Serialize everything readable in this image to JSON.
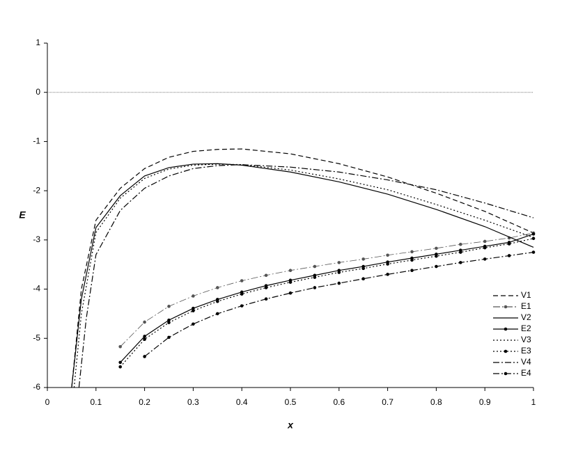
{
  "chart_data": {
    "type": "line",
    "x_label": "x",
    "y_label": "E",
    "xlim": [
      0,
      1
    ],
    "ylim": [
      -6,
      1
    ],
    "xticks": [
      0,
      0.1,
      0.2,
      0.3,
      0.4,
      0.5,
      0.6,
      0.7,
      0.8,
      0.9,
      1
    ],
    "yticks": [
      1,
      0,
      -1,
      -2,
      -3,
      -4,
      -5,
      -6
    ],
    "reference_line": 0,
    "legend": "lower right",
    "series": [
      {
        "name": "V1",
        "color": "#000000",
        "dash": "7,4",
        "marker": false,
        "x": [
          0.05,
          0.07,
          0.1,
          0.15,
          0.2,
          0.25,
          0.3,
          0.35,
          0.4,
          0.5,
          0.6,
          0.7,
          0.8,
          0.9,
          1.0
        ],
        "values": [
          -6,
          -4.0,
          -2.6,
          -1.95,
          -1.55,
          -1.32,
          -1.2,
          -1.16,
          -1.15,
          -1.25,
          -1.45,
          -1.72,
          -2.05,
          -2.42,
          -2.86
        ]
      },
      {
        "name": "E1",
        "color": "#555555",
        "dash": "10,3,2,3",
        "marker": true,
        "x": [
          0.15,
          0.2,
          0.25,
          0.3,
          0.35,
          0.4,
          0.45,
          0.5,
          0.55,
          0.6,
          0.65,
          0.7,
          0.75,
          0.8,
          0.85,
          0.9,
          0.95,
          1.0
        ],
        "values": [
          -5.17,
          -4.67,
          -4.35,
          -4.14,
          -3.97,
          -3.83,
          -3.72,
          -3.62,
          -3.54,
          -3.46,
          -3.39,
          -3.31,
          -3.24,
          -3.17,
          -3.09,
          -3.03,
          -2.96,
          -2.86
        ]
      },
      {
        "name": "V2",
        "color": "#000000",
        "dash": "none",
        "marker": false,
        "x": [
          0.05,
          0.07,
          0.1,
          0.15,
          0.2,
          0.25,
          0.3,
          0.35,
          0.4,
          0.5,
          0.6,
          0.7,
          0.8,
          0.9,
          1.0
        ],
        "values": [
          -6,
          -4.2,
          -2.75,
          -2.1,
          -1.7,
          -1.53,
          -1.46,
          -1.45,
          -1.48,
          -1.62,
          -1.82,
          -2.07,
          -2.38,
          -2.73,
          -3.15
        ]
      },
      {
        "name": "E2",
        "color": "#000000",
        "dash": "none",
        "marker": true,
        "x": [
          0.15,
          0.2,
          0.25,
          0.3,
          0.35,
          0.4,
          0.45,
          0.5,
          0.55,
          0.6,
          0.65,
          0.7,
          0.75,
          0.8,
          0.85,
          0.9,
          0.95,
          1.0
        ],
        "values": [
          -5.49,
          -4.96,
          -4.63,
          -4.39,
          -4.21,
          -4.06,
          -3.93,
          -3.82,
          -3.72,
          -3.62,
          -3.54,
          -3.45,
          -3.37,
          -3.29,
          -3.21,
          -3.13,
          -3.05,
          -2.88
        ]
      },
      {
        "name": "V3",
        "color": "#000000",
        "dash": "2,3",
        "marker": false,
        "x": [
          0.055,
          0.07,
          0.1,
          0.15,
          0.2,
          0.25,
          0.3,
          0.35,
          0.4,
          0.5,
          0.6,
          0.7,
          0.8,
          0.9,
          1.0
        ],
        "values": [
          -6,
          -4.5,
          -2.85,
          -2.15,
          -1.75,
          -1.56,
          -1.48,
          -1.46,
          -1.47,
          -1.58,
          -1.76,
          -1.98,
          -2.28,
          -2.6,
          -2.95
        ]
      },
      {
        "name": "E3",
        "color": "#000000",
        "dash": "2,3",
        "marker": true,
        "x": [
          0.15,
          0.2,
          0.25,
          0.3,
          0.35,
          0.4,
          0.45,
          0.5,
          0.55,
          0.6,
          0.65,
          0.7,
          0.75,
          0.8,
          0.85,
          0.9,
          0.95,
          1.0
        ],
        "values": [
          -5.58,
          -5.02,
          -4.68,
          -4.44,
          -4.25,
          -4.1,
          -3.97,
          -3.86,
          -3.76,
          -3.66,
          -3.58,
          -3.49,
          -3.41,
          -3.33,
          -3.25,
          -3.16,
          -3.08,
          -2.97
        ]
      },
      {
        "name": "V4",
        "color": "#000000",
        "dash": "9,3,2,3",
        "marker": false,
        "x": [
          0.065,
          0.08,
          0.1,
          0.15,
          0.2,
          0.25,
          0.3,
          0.35,
          0.4,
          0.5,
          0.6,
          0.7,
          0.8,
          0.9,
          1.0
        ],
        "values": [
          -6,
          -4.6,
          -3.3,
          -2.4,
          -1.95,
          -1.7,
          -1.55,
          -1.49,
          -1.47,
          -1.52,
          -1.62,
          -1.78,
          -1.98,
          -2.25,
          -2.55
        ]
      },
      {
        "name": "E4",
        "color": "#000000",
        "dash": "9,3,2,3",
        "marker": true,
        "x": [
          0.2,
          0.25,
          0.3,
          0.35,
          0.4,
          0.45,
          0.5,
          0.55,
          0.6,
          0.65,
          0.7,
          0.75,
          0.8,
          0.85,
          0.9,
          0.95,
          1.0
        ],
        "values": [
          -5.37,
          -4.98,
          -4.71,
          -4.5,
          -4.34,
          -4.2,
          -4.08,
          -3.97,
          -3.88,
          -3.79,
          -3.7,
          -3.62,
          -3.54,
          -3.46,
          -3.39,
          -3.32,
          -3.25
        ]
      }
    ]
  }
}
